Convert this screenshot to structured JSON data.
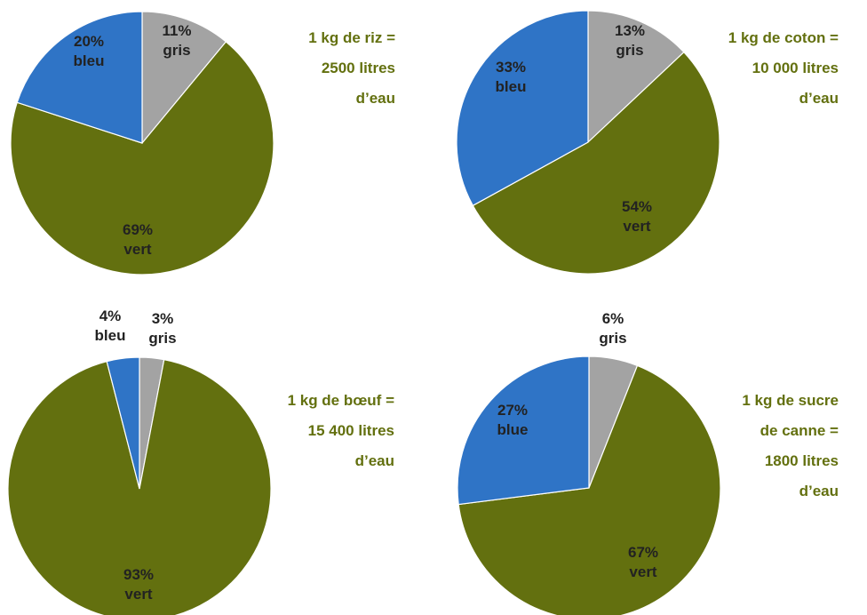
{
  "colors": {
    "vert": "#63700f",
    "bleu": "#2f74c6",
    "gris": "#a3a3a3",
    "caption": "#63700f",
    "label": "#222222",
    "edge": "#ffffff"
  },
  "chart_data": [
    {
      "type": "pie",
      "caption": [
        "1 kg de riz =",
        "2500 litres",
        "d’eau"
      ],
      "slices": [
        {
          "key": "gris",
          "value": 11,
          "label": [
            "11%",
            "gris"
          ]
        },
        {
          "key": "vert",
          "value": 69,
          "label": [
            "69%",
            "vert"
          ]
        },
        {
          "key": "bleu",
          "value": 20,
          "label": [
            "20%",
            "bleu"
          ]
        }
      ]
    },
    {
      "type": "pie",
      "caption": [
        "1 kg de coton =",
        "10 000 litres",
        "d’eau"
      ],
      "slices": [
        {
          "key": "gris",
          "value": 13,
          "label": [
            "13%",
            "gris"
          ]
        },
        {
          "key": "vert",
          "value": 54,
          "label": [
            "54%",
            "vert"
          ]
        },
        {
          "key": "bleu",
          "value": 33,
          "label": [
            "33%",
            "bleu"
          ]
        }
      ]
    },
    {
      "type": "pie",
      "caption": [
        "1 kg de bœuf =",
        "15 400 litres",
        "d’eau"
      ],
      "slices": [
        {
          "key": "gris",
          "value": 3,
          "label": [
            "3%",
            "gris"
          ]
        },
        {
          "key": "vert",
          "value": 93,
          "label": [
            "93%",
            "vert"
          ]
        },
        {
          "key": "bleu",
          "value": 4,
          "label": [
            "4%",
            "bleu"
          ]
        }
      ]
    },
    {
      "type": "pie",
      "caption": [
        "1 kg de sucre",
        "de canne =",
        "1800 litres",
        "d’eau"
      ],
      "slices": [
        {
          "key": "gris",
          "value": 6,
          "label": [
            "6%",
            "gris"
          ]
        },
        {
          "key": "vert",
          "value": 67,
          "label": [
            "67%",
            "vert"
          ]
        },
        {
          "key": "bleu",
          "value": 27,
          "label": [
            "27%",
            "blue"
          ]
        }
      ]
    }
  ]
}
